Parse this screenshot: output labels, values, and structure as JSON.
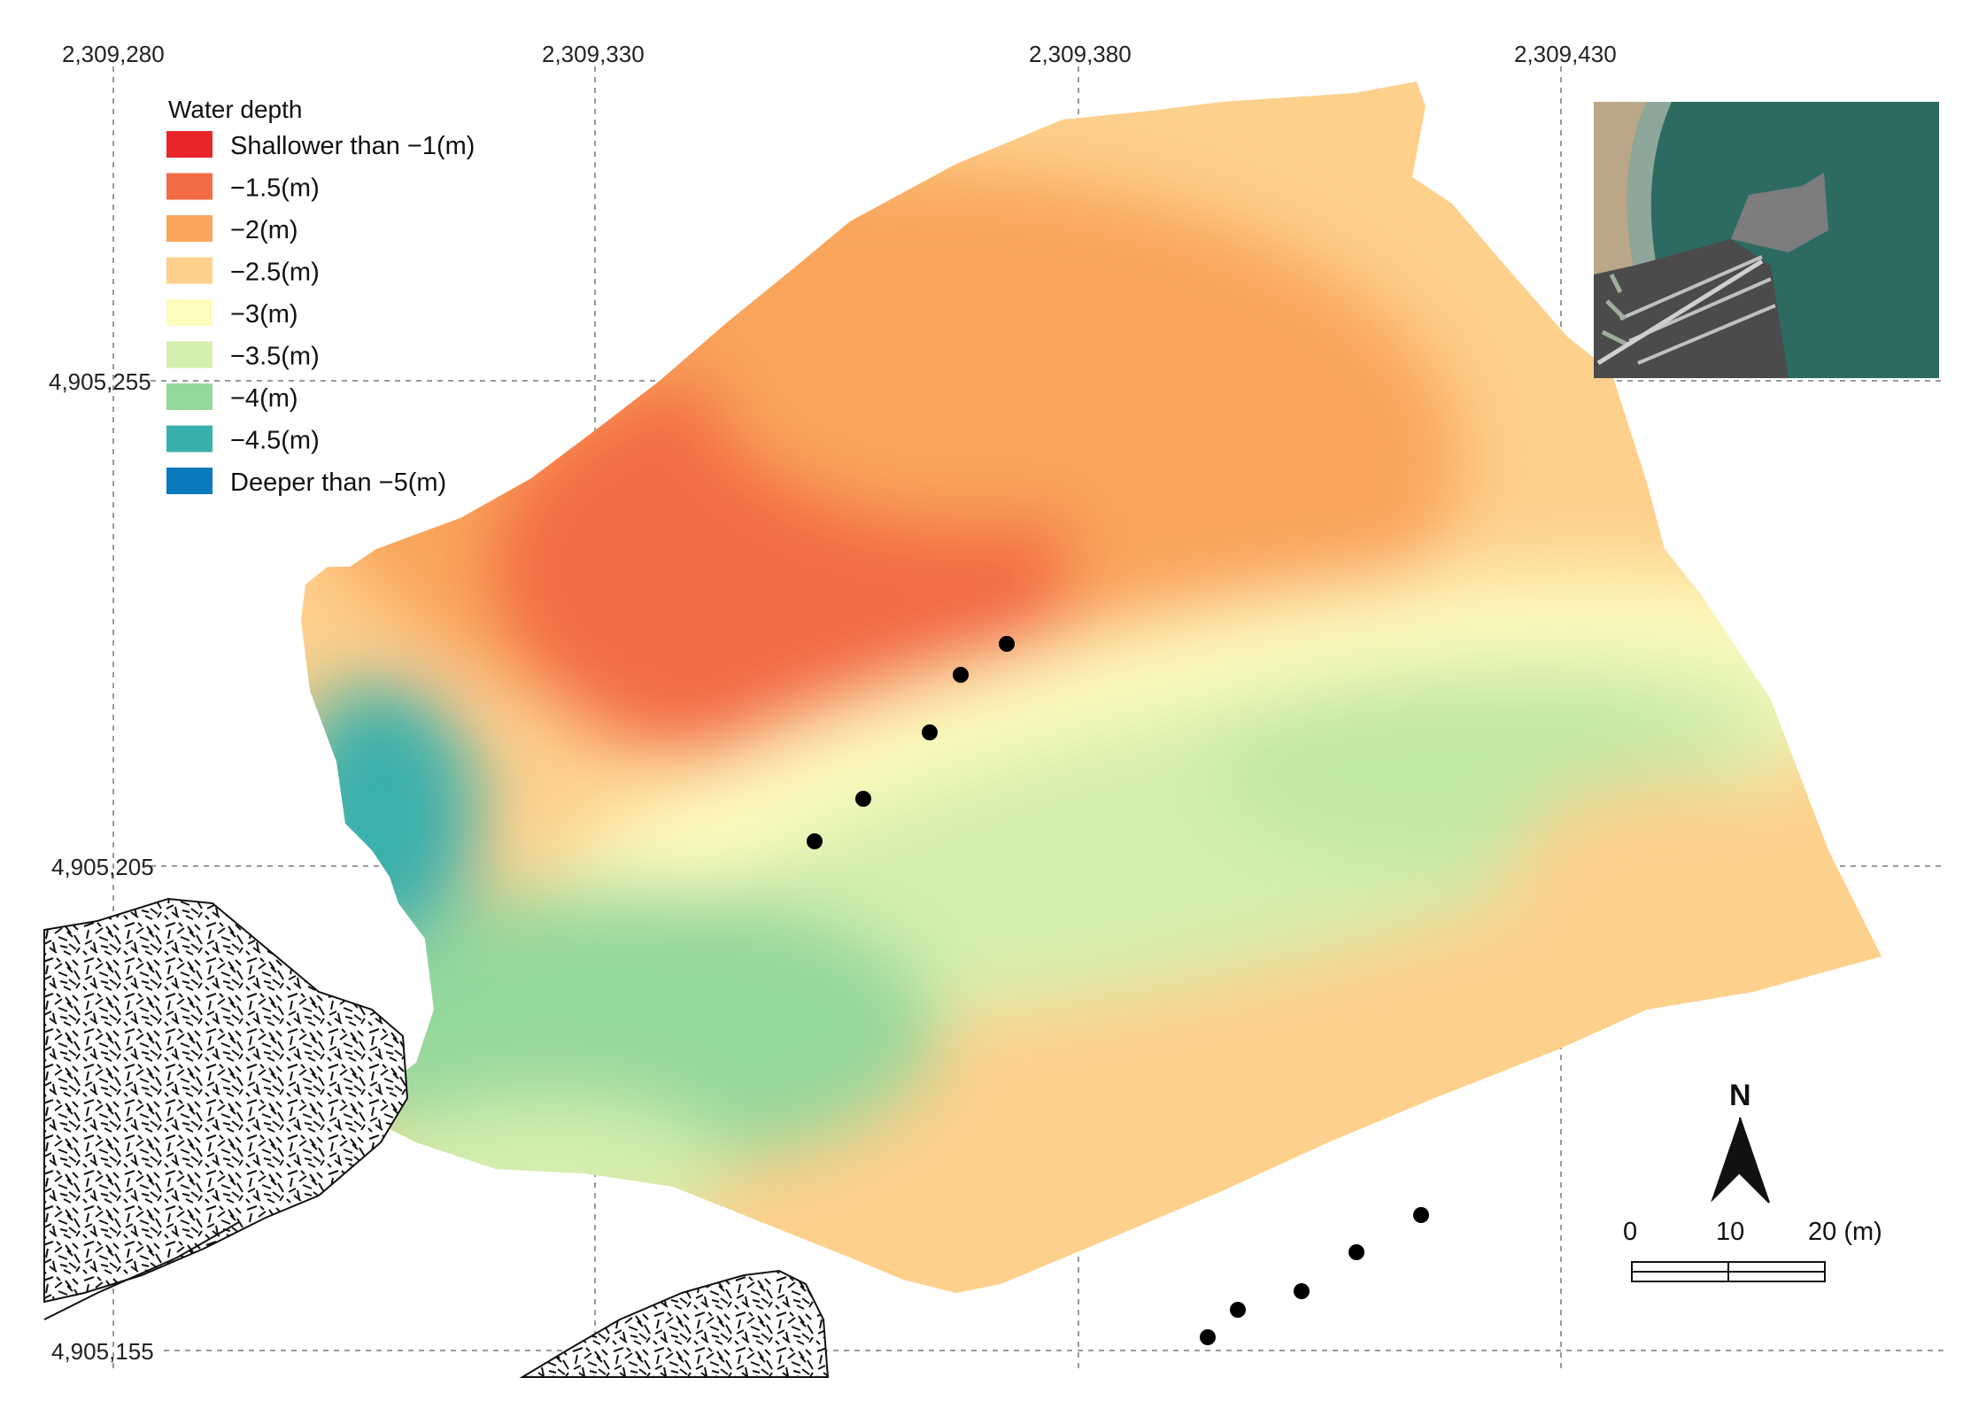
{
  "map": {
    "grid": {
      "x_labels": [
        "2,309,280",
        "2,309,330",
        "2,309,380",
        "2,309,430"
      ],
      "y_labels": [
        "4,905,255",
        "4,905,205",
        "4,905,155"
      ]
    },
    "legend": {
      "title": "Water depth",
      "items": [
        {
          "label": "Shallower than −1(m)",
          "color": "#e8262a"
        },
        {
          "label": "−1.5(m)",
          "color": "#f36c45"
        },
        {
          "label": "−2(m)",
          "color": "#f9a55b"
        },
        {
          "label": "−2.5(m)",
          "color": "#fdd08c"
        },
        {
          "label": "−3(m)",
          "color": "#fefbbf"
        },
        {
          "label": "−3.5(m)",
          "color": "#d4efae"
        },
        {
          "label": "−4(m)",
          "color": "#95d89c"
        },
        {
          "label": "−4.5(m)",
          "color": "#3ab0ac"
        },
        {
          "label": "Deeper than −5(m)",
          "color": "#0a79bd"
        }
      ]
    },
    "north_arrow": {
      "label": "N",
      "icon": "north-arrow-icon"
    },
    "scale_bar": {
      "ticks": [
        "0",
        "10",
        "20 (m)"
      ]
    },
    "inset": {
      "icon": "satellite-inset-image"
    },
    "markers": {
      "icon": "survey-point-icon"
    }
  }
}
